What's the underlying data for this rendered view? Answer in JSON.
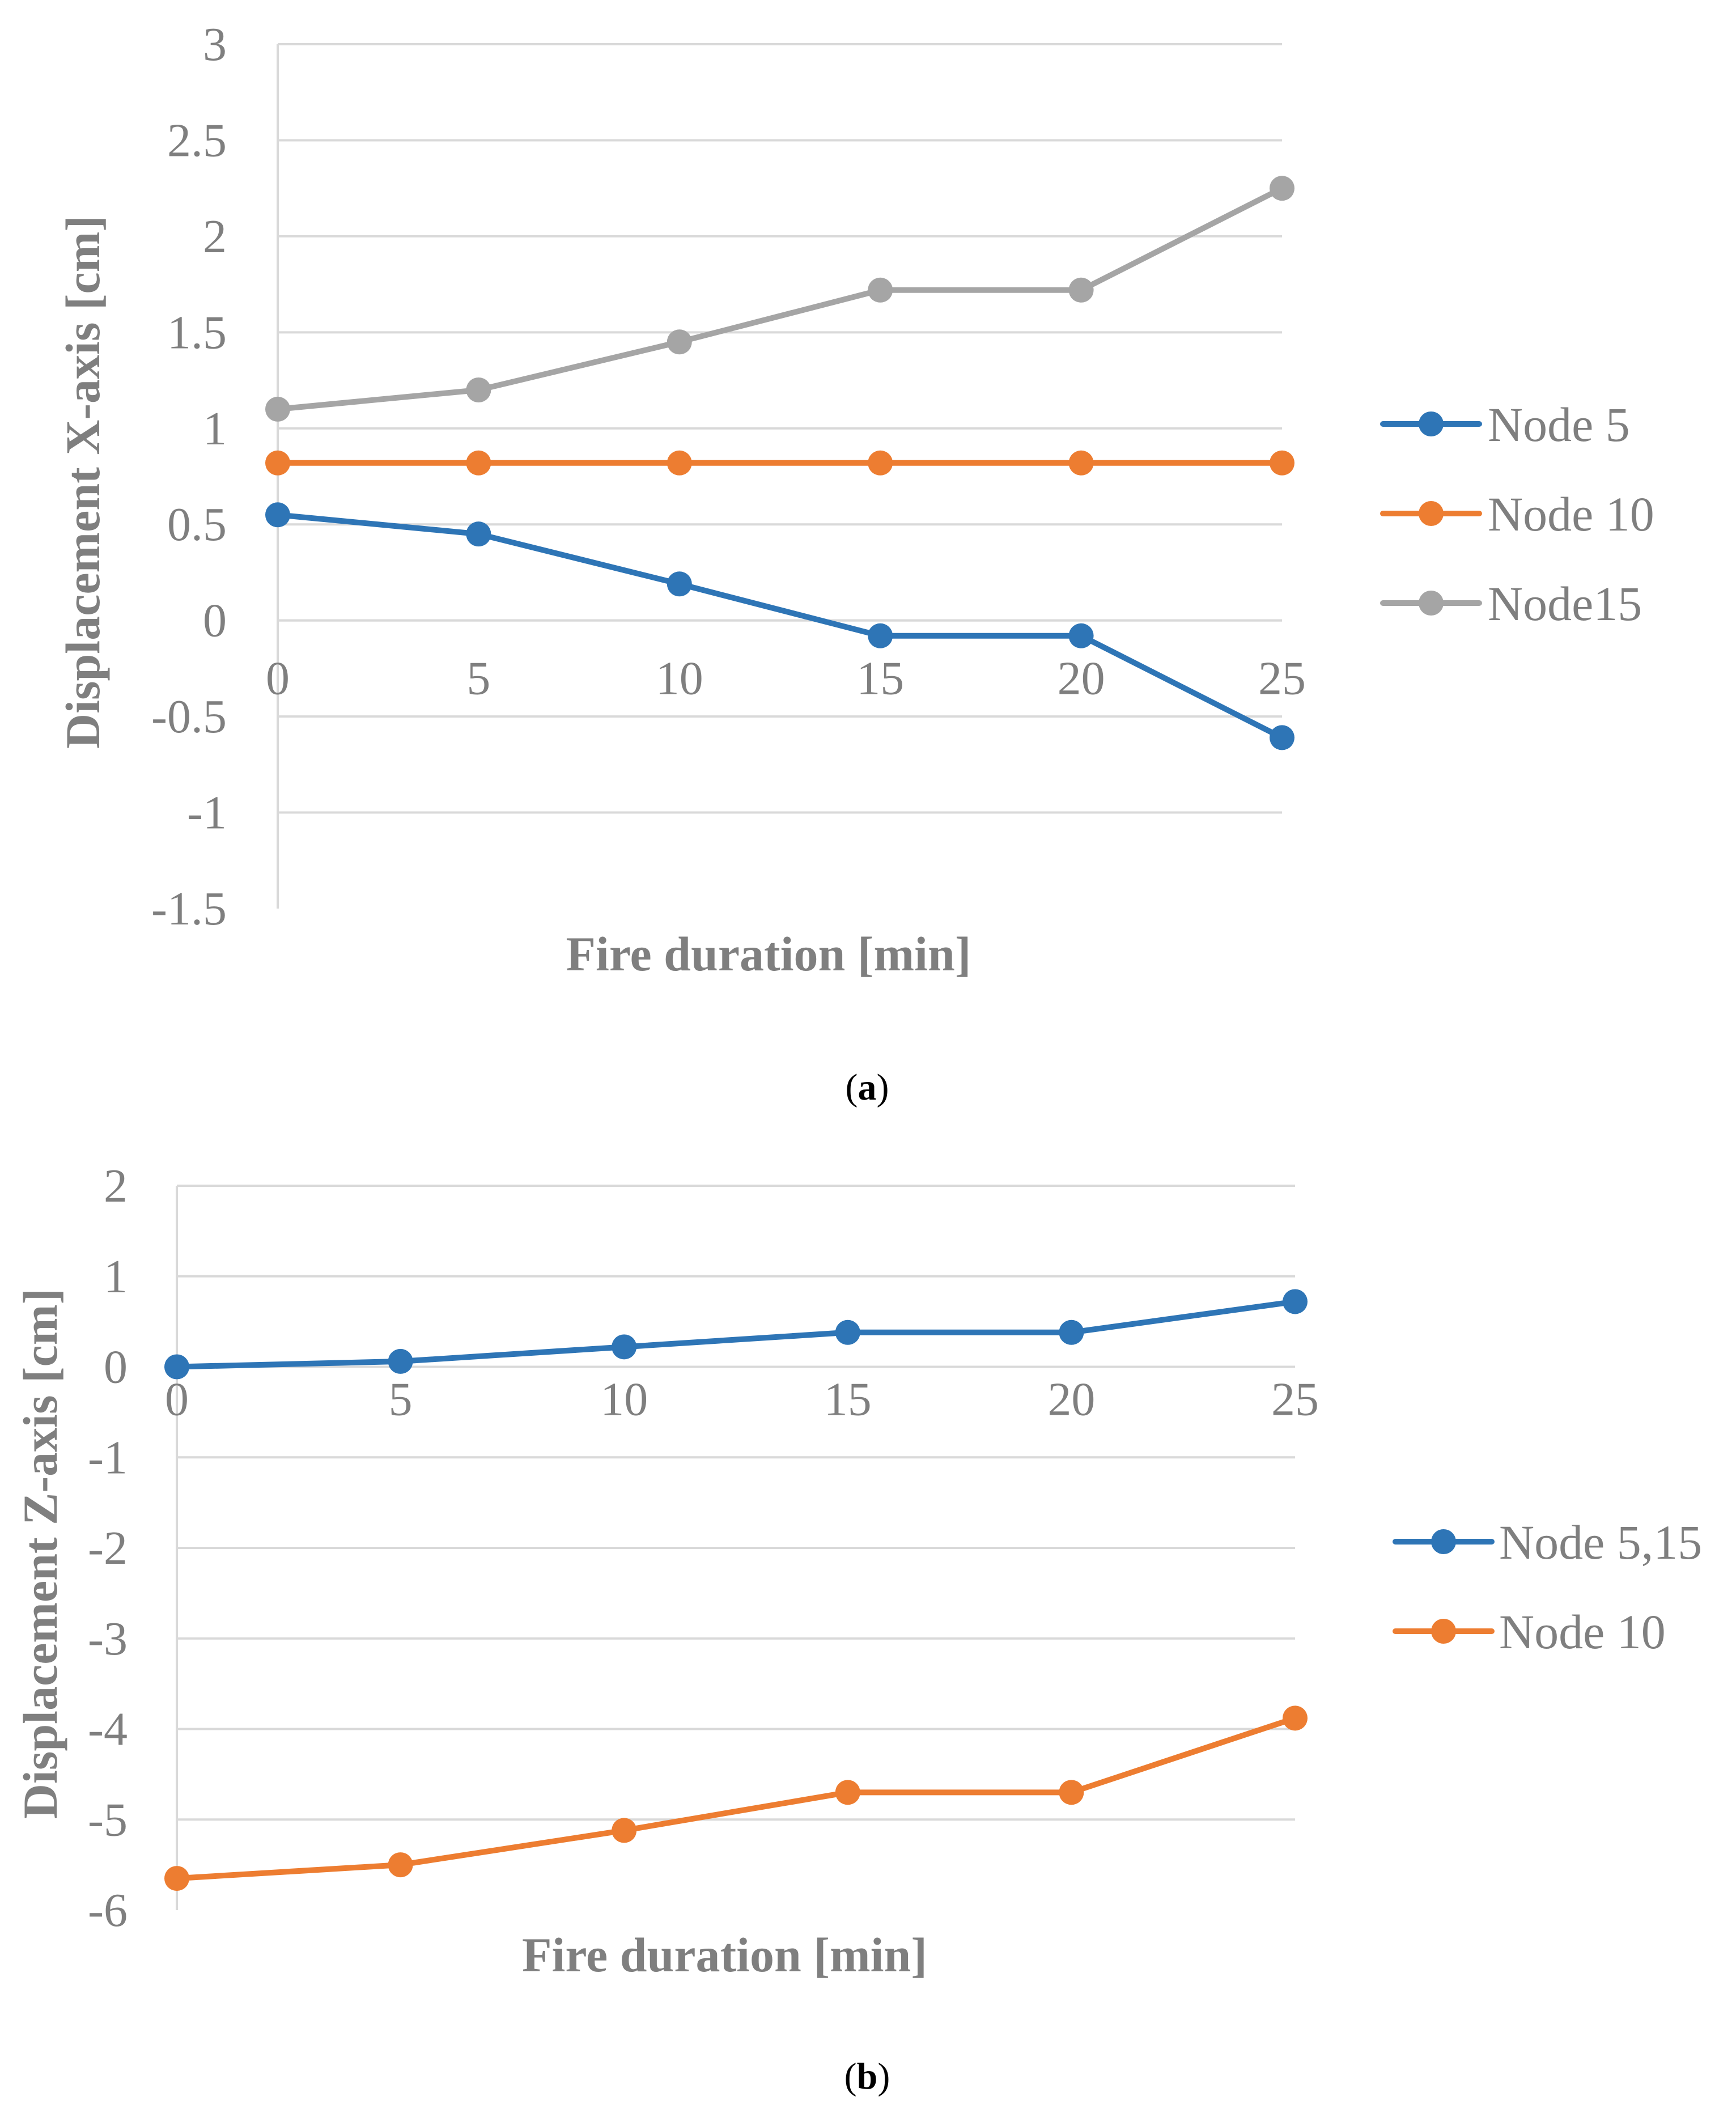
{
  "chart_data": [
    {
      "type": "line",
      "title": "",
      "caption_letter": "a",
      "xlabel": "Fire duration [min]",
      "ylabel": "Displacement X-axis [cm]",
      "x": [
        0,
        5,
        10,
        15,
        20,
        25
      ],
      "x_tick_labels": [
        "0",
        "5",
        "10",
        "15",
        "20",
        "25"
      ],
      "ylim": [
        -1.5,
        3
      ],
      "y_ticks": [
        3,
        2.5,
        2,
        1.5,
        1,
        0.5,
        0,
        -0.5,
        -1,
        -1.5
      ],
      "y_tick_labels": [
        "3",
        "2.5",
        "2",
        "1.5",
        "1",
        "0.5",
        "0",
        "-0.5",
        "-1",
        "-1.5"
      ],
      "grid": true,
      "legend_position": "right",
      "series": [
        {
          "name": "Node 5",
          "color": "#2e75b6",
          "values": [
            0.55,
            0.45,
            0.19,
            -0.08,
            -0.08,
            -0.61
          ]
        },
        {
          "name": "Node 10",
          "color": "#ed7d31",
          "values": [
            0.82,
            0.82,
            0.82,
            0.82,
            0.82,
            0.82
          ]
        },
        {
          "name": "Node15",
          "color": "#a5a5a5",
          "values": [
            1.1,
            1.2,
            1.45,
            1.72,
            1.72,
            2.25
          ]
        }
      ]
    },
    {
      "type": "line",
      "title": "",
      "caption_letter": "b",
      "xlabel": "Fire duration [min]",
      "ylabel": "Displacement Z-axis [cm]",
      "x": [
        0,
        5,
        10,
        15,
        20,
        25
      ],
      "x_tick_labels": [
        "0",
        "5",
        "10",
        "15",
        "20",
        "25"
      ],
      "ylim": [
        -6,
        2
      ],
      "y_ticks": [
        2,
        1,
        0,
        -1,
        -2,
        -3,
        -4,
        -5,
        -6
      ],
      "y_tick_labels": [
        "2",
        "1",
        "0",
        "-1",
        "-2",
        "-3",
        "-4",
        "-5",
        "-6"
      ],
      "grid": true,
      "legend_position": "right",
      "series": [
        {
          "name": "Node 5,15",
          "color": "#2e75b6",
          "values": [
            0.0,
            0.06,
            0.22,
            0.38,
            0.38,
            0.72
          ]
        },
        {
          "name": "Node 10",
          "color": "#ed7d31",
          "values": [
            -5.65,
            -5.5,
            -5.12,
            -4.7,
            -4.7,
            -3.88
          ]
        }
      ]
    }
  ]
}
